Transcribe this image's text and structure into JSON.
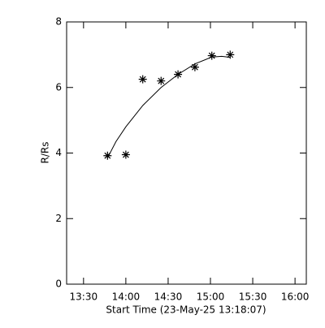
{
  "chart_data": {
    "type": "scatter",
    "x_label": "Start Time (23-May-25 13:18:07)",
    "y_label": "R/Rs",
    "xlim": [
      18,
      188
    ],
    "xticks": [
      {
        "value": 30,
        "label": "13:30"
      },
      {
        "value": 60,
        "label": "14:00"
      },
      {
        "value": 90,
        "label": "14:30"
      },
      {
        "value": 120,
        "label": "15:00"
      },
      {
        "value": 150,
        "label": "15:30"
      },
      {
        "value": 180,
        "label": "16:00"
      }
    ],
    "ylim": [
      0,
      8
    ],
    "yticks": [
      0,
      2,
      4,
      6,
      8
    ],
    "color": "#000000",
    "series": [
      {
        "x": [
          47,
          60,
          72,
          85,
          97,
          109,
          121,
          134
        ],
        "values": [
          3.92,
          3.95,
          6.25,
          6.2,
          6.4,
          6.62,
          6.97,
          7.0
        ],
        "marker": "asterisk"
      },
      {
        "x": [
          47,
          53,
          60,
          72,
          85,
          97,
          109,
          121,
          128,
          134
        ],
        "values": [
          3.85,
          4.35,
          4.8,
          5.45,
          6.0,
          6.4,
          6.72,
          6.93,
          6.95,
          6.92
        ],
        "line": true
      }
    ]
  }
}
